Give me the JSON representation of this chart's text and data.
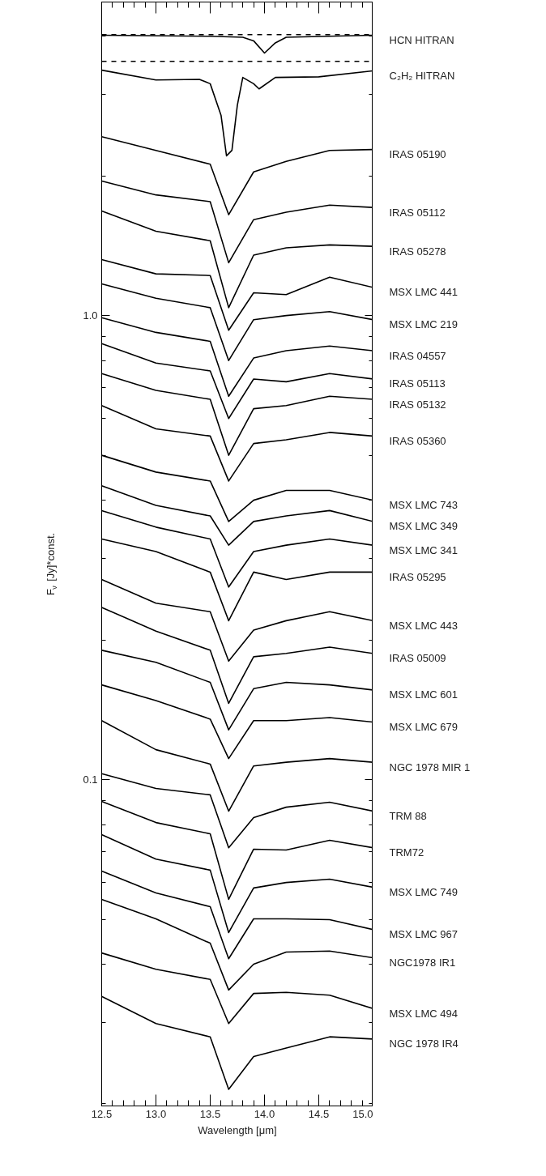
{
  "chart_data": {
    "type": "line",
    "xlabel": "Wavelength [μm]",
    "ylabel": "F$_{ν}$ [Jy]*const.",
    "log": "y",
    "legend": "right",
    "xlim": [
      12.5,
      15.0
    ],
    "ylim": [
      0.0198,
      4.74
    ],
    "xticks": [
      12.5,
      {
        "value": 13,
        "label": "13.0"
      },
      13.5,
      {
        "value": 14,
        "label": "14.0"
      },
      14.5,
      {
        "value": 15,
        "label": "15.0"
      }
    ],
    "yticks": [
      0.1,
      {
        "value": 1,
        "label": "1.0"
      }
    ],
    "ref_lines": [
      {
        "axis": "y",
        "value": 4.03,
        "line_style": "dashed",
        "color": "#000000"
      },
      {
        "axis": "y",
        "value": 3.53,
        "line_style": "dashed",
        "color": "#000000"
      }
    ],
    "x": [
      12.5,
      13.0,
      13.5,
      13.67,
      13.9,
      14.2,
      14.6,
      15.0
    ],
    "series": [
      {
        "name": "HCN HITRAN",
        "color": "#000000",
        "x": [
          12.5,
          13.5,
          13.8,
          13.9,
          14.0,
          14.1,
          14.2,
          15.0
        ],
        "values": [
          4.02,
          4.0,
          3.98,
          3.91,
          3.68,
          3.87,
          3.98,
          4.02
        ]
      },
      {
        "name": "C₂H₂ HITRAN",
        "color": "#000000",
        "x": [
          12.5,
          13.0,
          13.4,
          13.5,
          13.6,
          13.65,
          13.7,
          13.75,
          13.8,
          13.9,
          13.95,
          14.1,
          14.5,
          15.0
        ],
        "values": [
          3.38,
          3.22,
          3.23,
          3.16,
          2.7,
          2.21,
          2.27,
          2.84,
          3.26,
          3.16,
          3.08,
          3.26,
          3.27,
          3.37
        ]
      },
      {
        "name": "IRAS 05190",
        "color": "#000000",
        "values": [
          2.43,
          2.27,
          2.12,
          1.65,
          2.04,
          2.15,
          2.27,
          2.28
        ]
      },
      {
        "name": "IRAS 05112",
        "color": "#000000",
        "values": [
          1.95,
          1.82,
          1.76,
          1.3,
          1.61,
          1.67,
          1.73,
          1.71
        ]
      },
      {
        "name": "IRAS 05278",
        "color": "#000000",
        "values": [
          1.68,
          1.52,
          1.45,
          1.04,
          1.35,
          1.4,
          1.42,
          1.41
        ]
      },
      {
        "name": "MSX LMC 441",
        "color": "#000000",
        "values": [
          1.32,
          1.23,
          1.22,
          0.93,
          1.12,
          1.11,
          1.21,
          1.15
        ]
      },
      {
        "name": "MSX LMC 219",
        "color": "#000000",
        "values": [
          1.17,
          1.09,
          1.04,
          0.8,
          0.98,
          1.0,
          1.02,
          0.98
        ]
      },
      {
        "name": "IRAS 04557",
        "color": "#000000",
        "values": [
          0.99,
          0.92,
          0.88,
          0.67,
          0.81,
          0.84,
          0.86,
          0.84
        ]
      },
      {
        "name": "IRAS 05113",
        "color": "#000000",
        "values": [
          0.87,
          0.79,
          0.76,
          0.6,
          0.73,
          0.72,
          0.75,
          0.73
        ]
      },
      {
        "name": "IRAS 05132",
        "color": "#000000",
        "values": [
          0.75,
          0.69,
          0.66,
          0.5,
          0.63,
          0.64,
          0.67,
          0.66
        ]
      },
      {
        "name": "IRAS 05360",
        "color": "#000000",
        "values": [
          0.64,
          0.57,
          0.55,
          0.44,
          0.53,
          0.54,
          0.56,
          0.55
        ]
      },
      {
        "name": "MSX LMC 743",
        "color": "#000000",
        "values": [
          0.5,
          0.46,
          0.44,
          0.36,
          0.4,
          0.42,
          0.42,
          0.4
        ]
      },
      {
        "name": "MSX LMC 349",
        "color": "#000000",
        "values": [
          0.43,
          0.39,
          0.37,
          0.32,
          0.36,
          0.37,
          0.38,
          0.36
        ]
      },
      {
        "name": "MSX LMC 341",
        "color": "#000000",
        "values": [
          0.38,
          0.35,
          0.33,
          0.26,
          0.31,
          0.32,
          0.33,
          0.32
        ]
      },
      {
        "name": "IRAS 05295",
        "color": "#000000",
        "values": [
          0.33,
          0.31,
          0.28,
          0.22,
          0.28,
          0.27,
          0.28,
          0.28
        ]
      },
      {
        "name": "MSX LMC 443",
        "color": "#000000",
        "values": [
          0.27,
          0.24,
          0.23,
          0.18,
          0.21,
          0.22,
          0.23,
          0.22
        ]
      },
      {
        "name": "IRAS 05009",
        "color": "#000000",
        "values": [
          0.235,
          0.209,
          0.19,
          0.146,
          0.184,
          0.187,
          0.193,
          0.187
        ]
      },
      {
        "name": "MSX LMC 601",
        "color": "#000000",
        "values": [
          0.19,
          0.179,
          0.162,
          0.128,
          0.157,
          0.162,
          0.16,
          0.156
        ]
      },
      {
        "name": "MSX LMC 679",
        "color": "#000000",
        "values": [
          0.16,
          0.148,
          0.135,
          0.111,
          0.134,
          0.134,
          0.136,
          0.133
        ]
      },
      {
        "name": "NGC 1978 MIR 1",
        "color": "#000000",
        "values": [
          0.134,
          0.116,
          0.108,
          0.0855,
          0.107,
          0.109,
          0.111,
          0.109
        ]
      },
      {
        "name": "TRM 88",
        "color": "#000000",
        "values": [
          0.103,
          0.0957,
          0.0927,
          0.0713,
          0.0828,
          0.0872,
          0.0894,
          0.0855
        ]
      },
      {
        "name": "TRM72",
        "color": "#000000",
        "values": [
          0.0897,
          0.0808,
          0.0764,
          0.0552,
          0.0708,
          0.0705,
          0.074,
          0.0713
        ]
      },
      {
        "name": "MSX LMC 749",
        "color": "#000000",
        "values": [
          0.0761,
          0.0674,
          0.0638,
          0.0468,
          0.0584,
          0.06,
          0.061,
          0.0586
        ]
      },
      {
        "name": "MSX LMC 967",
        "color": "#000000",
        "values": [
          0.0635,
          0.057,
          0.0532,
          0.0411,
          0.0501,
          0.0501,
          0.0499,
          0.0475
        ]
      },
      {
        "name": "NGC1978 IR1",
        "color": "#000000",
        "values": [
          0.0552,
          0.0501,
          0.0444,
          0.0352,
          0.04,
          0.0425,
          0.0427,
          0.0413
        ]
      },
      {
        "name": "MSX LMC 494",
        "color": "#000000",
        "values": [
          0.0423,
          0.039,
          0.0371,
          0.0298,
          0.0346,
          0.0348,
          0.0343,
          0.0321
        ]
      },
      {
        "name": "NGC 1978 IR4",
        "color": "#000000",
        "values": [
          0.0341,
          0.0298,
          0.0279,
          0.0215,
          0.0253,
          0.0264,
          0.0279,
          0.0276
        ]
      }
    ]
  }
}
